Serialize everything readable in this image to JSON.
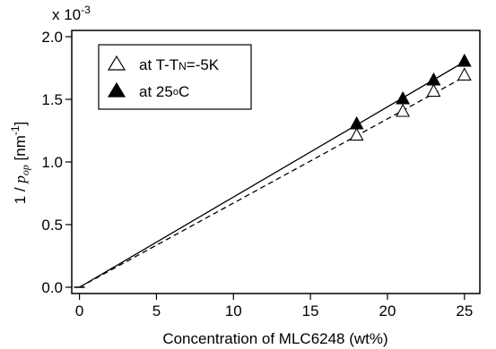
{
  "chart_data": {
    "type": "scatter",
    "multiplier_label": "x 10",
    "multiplier_exponent": "-3",
    "xlabel": "Concentration of MLC6248 (wt%)",
    "ylabel": {
      "prefix": "1 / ",
      "var": "p",
      "sub": "op",
      "unit_open": " [nm",
      "unit_exp": "-1",
      "unit_close": "]"
    },
    "xlim": [
      -0.5,
      26
    ],
    "ylim": [
      -0.05,
      2.05
    ],
    "xticks": [
      0,
      5,
      10,
      15,
      20,
      25
    ],
    "yticks": [
      0.0,
      0.5,
      1.0,
      1.5,
      2.0
    ],
    "ytick_labels": [
      "0.0",
      "0.5",
      "1.0",
      "1.5",
      "2.0"
    ],
    "legend_position": "top-left",
    "series": [
      {
        "legend_main": "at T-T",
        "legend_sub": "N",
        "legend_tail": "=-5K",
        "marker": "open-triangle",
        "line": "dashed",
        "x": [
          0,
          18,
          21,
          23,
          25
        ],
        "y": [
          0.0,
          1.21,
          1.4,
          1.56,
          1.69
        ],
        "fit": {
          "x": [
            0,
            25
          ],
          "y": [
            0.0,
            1.68
          ]
        }
      },
      {
        "legend_main": "at 25",
        "legend_sup": "o",
        "legend_tail": "C",
        "marker": "filled-triangle",
        "line": "solid",
        "x": [
          0,
          18,
          21,
          23,
          25
        ],
        "y": [
          0.0,
          1.3,
          1.5,
          1.65,
          1.8
        ],
        "fit": {
          "x": [
            0,
            25
          ],
          "y": [
            0.0,
            1.8
          ]
        }
      }
    ]
  }
}
